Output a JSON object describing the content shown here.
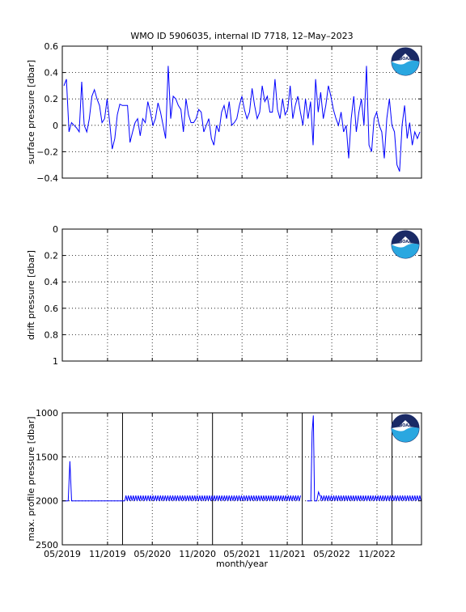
{
  "title": "WMO ID 5906035, internal ID 7718, 12–May–2023",
  "colors": {
    "line": "#0000ff",
    "axis": "#000000",
    "noaa_navy": "#1a2a66",
    "noaa_cyan": "#2aa7e0"
  },
  "logo": {
    "icon": "noaa-logo-icon",
    "text": "NOAA"
  },
  "chart_data": [
    {
      "type": "line",
      "ylabel": "surface pressure [dbar]",
      "xlim": [
        "2019-05",
        "2023-05"
      ],
      "ylim": [
        -0.4,
        0.6
      ],
      "yticks": [
        "0.6",
        "0.4",
        "0.2",
        "0",
        "−0.2",
        "−0.4"
      ],
      "grid": true,
      "x_start": "2019-05",
      "y": [
        0.3,
        0.35,
        -0.05,
        0.02,
        0.0,
        -0.02,
        -0.05,
        0.33,
        0.0,
        -0.05,
        0.05,
        0.22,
        0.27,
        0.2,
        0.15,
        0.02,
        0.05,
        0.2,
        0.02,
        -0.18,
        -0.1,
        0.08,
        0.16,
        0.15,
        0.15,
        0.15,
        -0.13,
        -0.05,
        0.02,
        0.05,
        -0.08,
        0.05,
        0.02,
        0.18,
        0.1,
        0.0,
        0.05,
        0.17,
        0.1,
        0.0,
        -0.1,
        0.45,
        0.05,
        0.22,
        0.2,
        0.15,
        0.12,
        -0.05,
        0.2,
        0.08,
        0.02,
        0.02,
        0.05,
        0.12,
        0.1,
        -0.05,
        0.0,
        0.05,
        -0.1,
        -0.15,
        0.0,
        -0.05,
        0.1,
        0.15,
        0.05,
        0.18,
        0.0,
        0.02,
        0.05,
        0.15,
        0.22,
        0.12,
        0.05,
        0.1,
        0.28,
        0.15,
        0.05,
        0.1,
        0.3,
        0.18,
        0.22,
        0.1,
        0.1,
        0.35,
        0.12,
        0.05,
        0.2,
        0.08,
        0.12,
        0.3,
        0.05,
        0.15,
        0.22,
        0.1,
        0.0,
        0.2,
        0.05,
        0.18,
        -0.15,
        0.35,
        0.1,
        0.25,
        0.05,
        0.15,
        0.3,
        0.22,
        0.12,
        0.05,
        0.0,
        0.1,
        -0.05,
        0.0,
        -0.25,
        0.05,
        0.22,
        -0.05,
        0.1,
        0.2,
        0.0,
        0.45,
        -0.15,
        -0.2,
        0.05,
        0.1,
        0.0,
        -0.05,
        -0.25,
        0.05,
        0.2,
        0.0,
        -0.05,
        -0.3,
        -0.35,
        0.0,
        0.15,
        -0.1,
        0.02,
        -0.15,
        -0.05,
        -0.1,
        -0.05
      ]
    },
    {
      "type": "line",
      "ylabel": "drift pressure [dbar]",
      "xlim": [
        "2019-05",
        "2023-05"
      ],
      "ylim": [
        0,
        1
      ],
      "y_reversed": true,
      "yticks": [
        "0",
        "0.2",
        "0.4",
        "0.6",
        "0.8",
        "1"
      ],
      "grid": true
    },
    {
      "type": "line",
      "ylabel": "max. profile pressure [dbar]",
      "xlabel": "month/year",
      "xlim": [
        "2019-05",
        "2023-05"
      ],
      "ylim": [
        1000,
        2500
      ],
      "y_reversed": true,
      "yticks": [
        "1000",
        "1500",
        "2000",
        "2500"
      ],
      "xticks": [
        "05/2019",
        "11/2019",
        "05/2020",
        "11/2020",
        "05/2021",
        "11/2021",
        "05/2022",
        "11/2022"
      ],
      "grid": true,
      "annual_markers": [
        "2020-01",
        "2021-01",
        "2022-01",
        "2023-01"
      ],
      "segments": [
        {
          "x": [
            "2019-05-01",
            "2019-05-25",
            "2019-06-01",
            "2019-06-08",
            "2019-06-15",
            "2020-01-10"
          ],
          "y": [
            2000,
            2000,
            1550,
            2000,
            2000,
            2000
          ]
        },
        {
          "x_start": "2020-01-10",
          "x_end": "2021-12-25",
          "mean": 1970,
          "amplitude": 30,
          "period_days": 10
        },
        {
          "x": [
            "2022-01-20",
            "2022-02-05",
            "2022-02-10",
            "2022-02-15",
            "2022-02-20",
            "2022-03-01",
            "2022-03-08",
            "2022-03-15"
          ],
          "y": [
            2000,
            2000,
            1220,
            1030,
            2000,
            2000,
            1900,
            1950
          ]
        },
        {
          "x_start": "2022-03-15",
          "x_end": "2023-05-01",
          "mean": 1970,
          "amplitude": 30,
          "period_days": 10
        }
      ]
    }
  ]
}
